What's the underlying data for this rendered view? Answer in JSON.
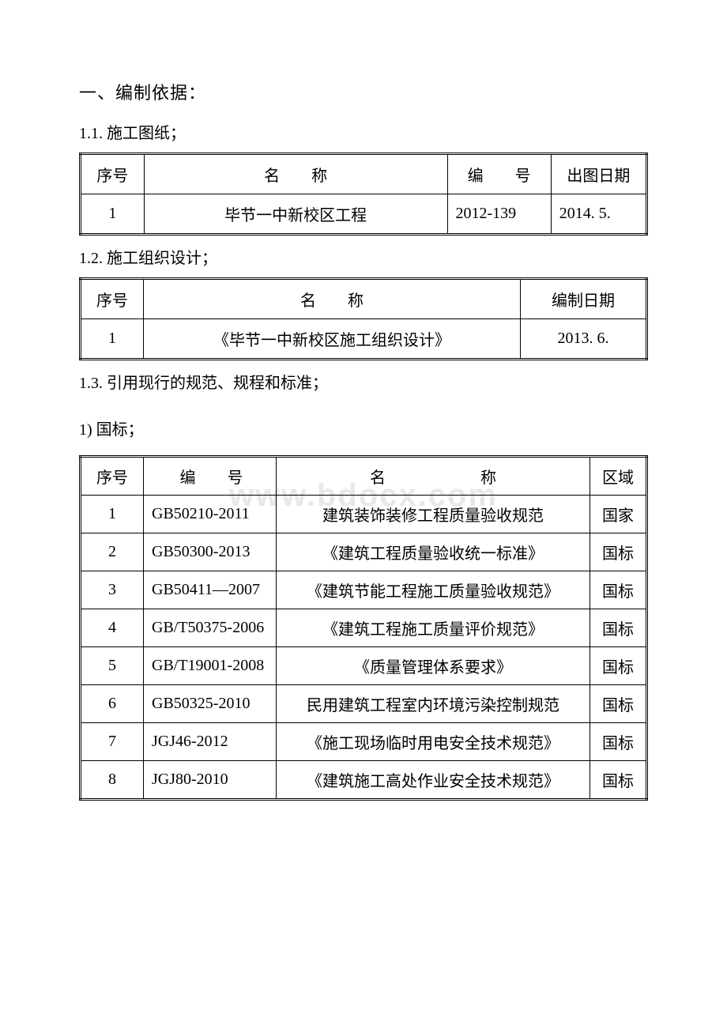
{
  "watermark": "www.bdocx.com",
  "heading1": "一、编制依据：",
  "section_1_1": "1.1. 施工图纸；",
  "table1": {
    "headers": {
      "seq": "序号",
      "name": "名　　称",
      "code": "编　　号",
      "date": "出图日期"
    },
    "rows": [
      {
        "seq": "1",
        "name": "毕节一中新校区工程",
        "code": "2012-139",
        "date": "2014. 5."
      }
    ]
  },
  "section_1_2": "1.2. 施工组织设计；",
  "table2": {
    "headers": {
      "seq": "序号",
      "name": "名　　称",
      "date": "编制日期"
    },
    "rows": [
      {
        "seq": "1",
        "name": "《毕节一中新校区施工组织设计》",
        "date": "2013. 6."
      }
    ]
  },
  "section_1_3": "1.3. 引用现行的规范、规程和标准；",
  "section_1_3_1": "1) 国标；",
  "table3": {
    "headers": {
      "seq": "序号",
      "code": "编　　号",
      "name": "名　　　　　　称",
      "region": "区域"
    },
    "rows": [
      {
        "seq": "1",
        "code": "GB50210-2011",
        "name": "建筑装饰装修工程质量验收规范",
        "region": "国家"
      },
      {
        "seq": "2",
        "code": "GB50300-2013",
        "name": "《建筑工程质量验收统一标准》",
        "region": "国标"
      },
      {
        "seq": "3",
        "code": "GB50411—2007",
        "name": "《建筑节能工程施工质量验收规范》",
        "region": "国标"
      },
      {
        "seq": "4",
        "code": "GB/T50375-2006",
        "name": "《建筑工程施工质量评价规范》",
        "region": "国标"
      },
      {
        "seq": "5",
        "code": "GB/T19001-2008",
        "name": "《质量管理体系要求》",
        "region": "国标"
      },
      {
        "seq": "6",
        "code": "GB50325-2010",
        "name": "民用建筑工程室内环境污染控制规范",
        "region": "国标"
      },
      {
        "seq": "7",
        "code": "JGJ46-2012",
        "name": "《施工现场临时用电安全技术规范》",
        "region": "国标"
      },
      {
        "seq": "8",
        "code": "JGJ80-2010",
        "name": "《建筑施工高处作业安全技术规范》",
        "region": "国标"
      }
    ]
  }
}
